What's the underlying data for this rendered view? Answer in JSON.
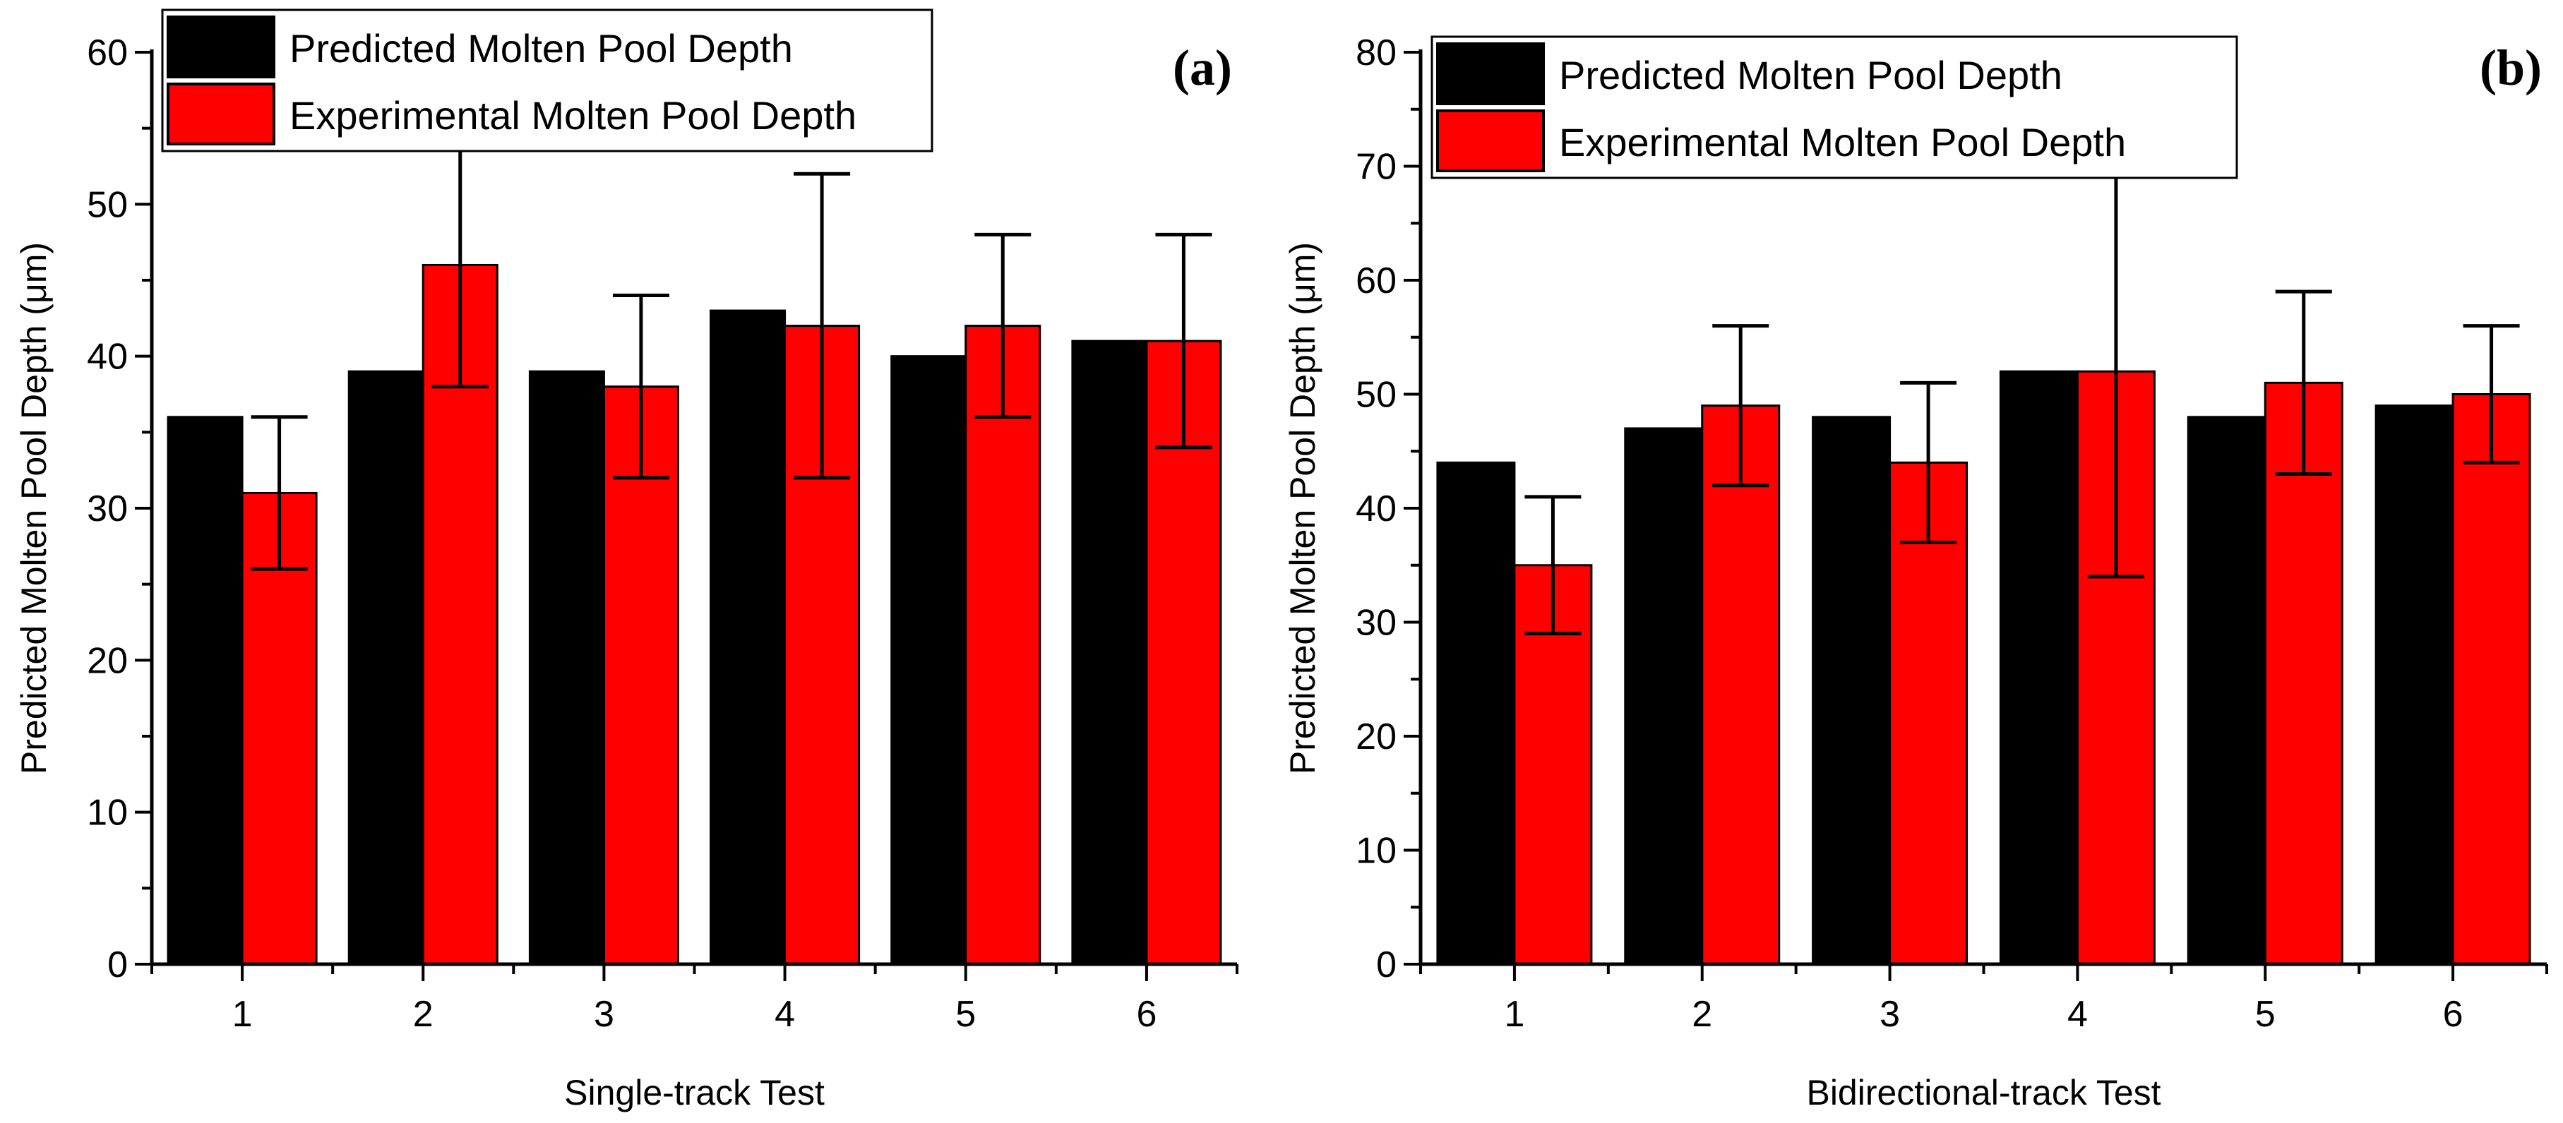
{
  "colors": {
    "predicted": "#000000",
    "experimental": "#ff0000",
    "axis": "#000000"
  },
  "chart_data": [
    {
      "type": "bar",
      "panel_label": "(a)",
      "title": "",
      "xlabel": "Single-track Test",
      "ylabel": "Predicted Molten Pool Depth (μm)",
      "categories": [
        "1",
        "2",
        "3",
        "4",
        "5",
        "6"
      ],
      "ylim": [
        0,
        60
      ],
      "yticks": [
        "0",
        "10",
        "20",
        "30",
        "40",
        "50",
        "60"
      ],
      "legend_position": "top-left",
      "series": [
        {
          "name": "Predicted Molten Pool Depth",
          "values": [
            36,
            39,
            39,
            43,
            40,
            41
          ]
        },
        {
          "name": "Experimental Molten Pool Depth",
          "values": [
            31,
            46,
            38,
            42,
            42,
            41
          ],
          "error_low": [
            26,
            38,
            32,
            32,
            36,
            34
          ],
          "error_high": [
            36,
            54,
            44,
            52,
            48,
            48
          ]
        }
      ]
    },
    {
      "type": "bar",
      "panel_label": "(b)",
      "title": "",
      "xlabel": "Bidirectional-track Test",
      "ylabel": "Predicted Molten Pool Depth (μm)",
      "categories": [
        "1",
        "2",
        "3",
        "4",
        "5",
        "6"
      ],
      "ylim": [
        0,
        80
      ],
      "yticks": [
        "0",
        "10",
        "20",
        "30",
        "40",
        "50",
        "60",
        "70",
        "80"
      ],
      "legend_position": "top-left",
      "series": [
        {
          "name": "Predicted Molten Pool Depth",
          "values": [
            44,
            47,
            48,
            52,
            48,
            49
          ]
        },
        {
          "name": "Experimental Molten Pool Depth",
          "values": [
            35,
            49,
            44,
            52,
            51,
            50
          ],
          "error_low": [
            29,
            42,
            37,
            34,
            43,
            44
          ],
          "error_high": [
            41,
            56,
            51,
            70,
            59,
            56
          ]
        }
      ]
    }
  ]
}
